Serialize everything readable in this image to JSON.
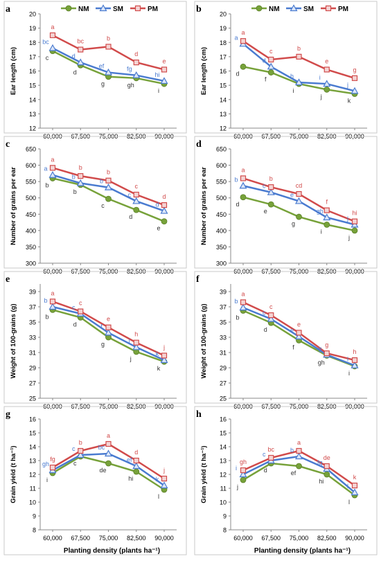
{
  "colors": {
    "NM": "#77a23a",
    "SM": "#4a7bd0",
    "PM": "#d14b4b",
    "axis": "#888888",
    "box": "#c8c8c8"
  },
  "x_tick_labels": [
    "60,000",
    "67,500",
    "75,000",
    "82,500",
    "90,000"
  ],
  "x_axis_title": "Planting density (plants ha⁻¹)",
  "chart_data": [
    {
      "panel": "a",
      "type": "line",
      "categories": [
        "60,000",
        "67,500",
        "75,000",
        "82,500",
        "90,000"
      ],
      "ylabel": "Ear length (cm)",
      "xlabel": "",
      "ylim": [
        12,
        20
      ],
      "ytick_step": 1,
      "legend": "top",
      "series": [
        {
          "name": "NM",
          "values": [
            17.4,
            16.4,
            15.6,
            15.5,
            15.1
          ],
          "labels": [
            "c",
            "d",
            "g",
            "gh",
            "i"
          ]
        },
        {
          "name": "SM",
          "values": [
            17.6,
            16.6,
            15.9,
            15.7,
            15.3
          ],
          "labels": [
            "bc",
            "d",
            "ef",
            "fg",
            "hi"
          ]
        },
        {
          "name": "PM",
          "values": [
            18.5,
            17.5,
            17.7,
            16.6,
            16.1
          ],
          "labels": [
            "a",
            "bc",
            "b",
            "d",
            "e"
          ]
        }
      ]
    },
    {
      "panel": "b",
      "type": "line",
      "categories": [
        "60,000",
        "67,500",
        "75,000",
        "82,500",
        "90,000"
      ],
      "ylabel": "Ear length (cm)",
      "xlabel": "",
      "ylim": [
        12,
        20
      ],
      "ytick_step": 1,
      "legend": "top",
      "series": [
        {
          "name": "NM",
          "values": [
            16.3,
            15.9,
            15.1,
            14.7,
            14.4
          ],
          "labels": [
            "d",
            "f",
            "i",
            "j",
            "k"
          ]
        },
        {
          "name": "SM",
          "values": [
            17.9,
            16.3,
            15.2,
            15.1,
            14.6
          ],
          "labels": [
            "a",
            "d",
            "h",
            "i",
            "j"
          ]
        },
        {
          "name": "PM",
          "values": [
            18.1,
            16.8,
            17.0,
            16.1,
            15.5
          ],
          "labels": [
            "a",
            "c",
            "b",
            "e",
            "g"
          ]
        }
      ]
    },
    {
      "panel": "c",
      "type": "line",
      "categories": [
        "60,000",
        "67,500",
        "75,000",
        "82,500",
        "90,000"
      ],
      "ylabel": "Number of grains per ear",
      "xlabel": "",
      "ylim": [
        300,
        650
      ],
      "ytick_step": 50,
      "legend": "none",
      "series": [
        {
          "name": "NM",
          "values": [
            560,
            540,
            497,
            463,
            428
          ],
          "labels": [
            "b",
            "b",
            "c",
            "d",
            "e"
          ]
        },
        {
          "name": "SM",
          "values": [
            570,
            545,
            532,
            490,
            460
          ],
          "labels": [
            "a",
            "b",
            "b",
            "c",
            "d"
          ]
        },
        {
          "name": "PM",
          "values": [
            592,
            567,
            553,
            510,
            478
          ],
          "labels": [
            "a",
            "b",
            "b",
            "c",
            "d"
          ]
        }
      ]
    },
    {
      "panel": "d",
      "type": "line",
      "categories": [
        "60,000",
        "67,500",
        "75,000",
        "82,500",
        "90,000"
      ],
      "ylabel": "Number of grains per ear",
      "xlabel": "",
      "ylim": [
        300,
        650
      ],
      "ytick_step": 50,
      "legend": "none",
      "series": [
        {
          "name": "NM",
          "values": [
            502,
            480,
            442,
            418,
            400
          ],
          "labels": [
            "d",
            "e",
            "g",
            "i",
            "j"
          ]
        },
        {
          "name": "SM",
          "values": [
            537,
            517,
            490,
            440,
            418
          ],
          "labels": [
            "b",
            "c",
            "e",
            "gh",
            "j"
          ]
        },
        {
          "name": "PM",
          "values": [
            560,
            533,
            512,
            462,
            428
          ],
          "labels": [
            "a",
            "b",
            "cd",
            "f",
            "hi"
          ]
        }
      ]
    },
    {
      "panel": "e",
      "type": "line",
      "categories": [
        "60,000",
        "67,500",
        "75,000",
        "82,500",
        "90,000"
      ],
      "ylabel": "Weight of 100-grains (g)",
      "xlabel": "",
      "ylim": [
        25,
        40
      ],
      "ytick_step": 2,
      "ytick_start": 25,
      "legend": "none",
      "series": [
        {
          "name": "NM",
          "values": [
            36.6,
            35.6,
            33.0,
            31.1,
            29.8
          ],
          "labels": [
            "b",
            "d",
            "g",
            "j",
            "k"
          ]
        },
        {
          "name": "SM",
          "values": [
            37.0,
            36.1,
            33.6,
            31.7,
            30.0
          ],
          "labels": [
            "b",
            "c",
            "f",
            "i",
            "k"
          ]
        },
        {
          "name": "PM",
          "values": [
            37.7,
            36.4,
            34.3,
            32.3,
            30.6
          ],
          "labels": [
            "a",
            "c",
            "e",
            "h",
            "j"
          ]
        }
      ]
    },
    {
      "panel": "f",
      "type": "line",
      "categories": [
        "60,000",
        "67,500",
        "75,000",
        "82,500",
        "90,000"
      ],
      "ylabel": "Weight of 100-grains (g)",
      "xlabel": "",
      "ylim": [
        25,
        40
      ],
      "ytick_step": 2,
      "ytick_start": 25,
      "legend": "none",
      "series": [
        {
          "name": "NM",
          "values": [
            36.5,
            34.9,
            32.6,
            30.6,
            29.2
          ],
          "labels": [
            "b",
            "d",
            "f",
            "gh",
            "i"
          ]
        },
        {
          "name": "SM",
          "values": [
            36.9,
            35.4,
            33.1,
            30.7,
            29.3
          ],
          "labels": [
            "b",
            "c",
            "e",
            "g",
            "i"
          ]
        },
        {
          "name": "PM",
          "values": [
            37.6,
            35.9,
            33.6,
            30.9,
            30.0
          ],
          "labels": [
            "a",
            "c",
            "e",
            "g",
            "h"
          ]
        }
      ]
    },
    {
      "panel": "g",
      "type": "line",
      "categories": [
        "60,000",
        "67,500",
        "75,000",
        "82,500",
        "90,000"
      ],
      "ylabel": "Grain yield (t ha⁻¹)",
      "xlabel": "Planting density (plants ha⁻¹)",
      "ylim": [
        8,
        16
      ],
      "ytick_step": 1,
      "legend": "none",
      "series": [
        {
          "name": "NM",
          "values": [
            12.1,
            13.3,
            12.8,
            12.2,
            10.9
          ],
          "labels": [
            "i",
            "c",
            "de",
            "hi",
            "l"
          ]
        },
        {
          "name": "SM",
          "values": [
            12.3,
            13.4,
            13.5,
            12.6,
            11.2
          ],
          "labels": [
            "gh",
            "c",
            "bc",
            "ef",
            "k"
          ]
        },
        {
          "name": "PM",
          "values": [
            12.5,
            13.7,
            14.2,
            13.0,
            11.7
          ],
          "labels": [
            "fg",
            "b",
            "a",
            "d",
            "j"
          ]
        }
      ]
    },
    {
      "panel": "h",
      "type": "line",
      "categories": [
        "60,000",
        "67,500",
        "75,000",
        "82,500",
        "90,000"
      ],
      "ylabel": "Grain yield (t ha⁻¹)",
      "xlabel": "Planting density (plants ha⁻¹)",
      "ylim": [
        8,
        16
      ],
      "ytick_step": 1,
      "legend": "none",
      "series": [
        {
          "name": "NM",
          "values": [
            11.6,
            12.8,
            12.6,
            12.0,
            10.5
          ],
          "labels": [
            "j",
            "d",
            "ef",
            "hi",
            "l"
          ]
        },
        {
          "name": "SM",
          "values": [
            12.0,
            13.0,
            13.3,
            12.4,
            10.7
          ],
          "labels": [
            "i",
            "c",
            "b",
            "fg",
            "l"
          ]
        },
        {
          "name": "PM",
          "values": [
            12.3,
            13.2,
            13.7,
            12.6,
            11.2
          ],
          "labels": [
            "gh",
            "bc",
            "a",
            "de",
            "k"
          ]
        }
      ]
    }
  ]
}
